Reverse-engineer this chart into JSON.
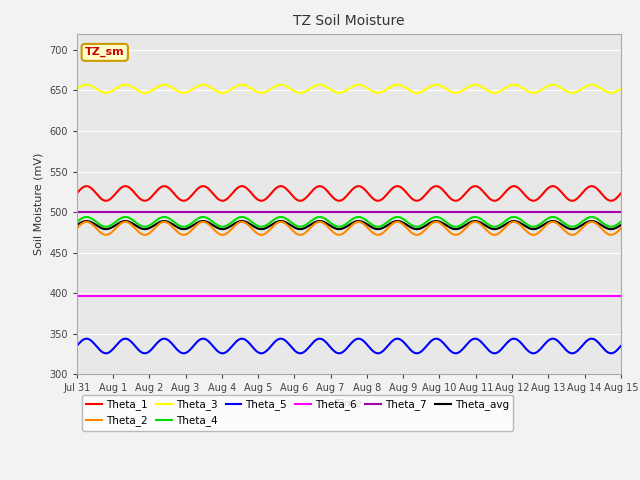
{
  "title": "TZ Soil Moisture",
  "ylabel": "Soil Moisture (mV)",
  "xlabel": "Time",
  "ylim": [
    300,
    720
  ],
  "yticks": [
    300,
    350,
    400,
    450,
    500,
    550,
    600,
    650,
    700
  ],
  "fig_bg_color": "#f2f2f2",
  "plot_bg_color": "#e8e8e8",
  "n_points": 480,
  "series": {
    "Theta_1": {
      "color": "#ff0000",
      "mean": 523,
      "amp": 9,
      "freq": 14.0,
      "noise": 0.0
    },
    "Theta_2": {
      "color": "#ff8800",
      "mean": 480,
      "amp": 8,
      "freq": 14.0,
      "noise": 0.0
    },
    "Theta_3": {
      "color": "#ffff00",
      "mean": 652,
      "amp": 5,
      "freq": 14.0,
      "noise": 0.0
    },
    "Theta_4": {
      "color": "#00dd00",
      "mean": 488,
      "amp": 6,
      "freq": 14.0,
      "noise": 0.0
    },
    "Theta_5": {
      "color": "#0000ff",
      "mean": 335,
      "amp": 9,
      "freq": 14.0,
      "noise": 0.0
    },
    "Theta_6": {
      "color": "#ff00ff",
      "mean": 397,
      "amp": 0.5,
      "freq": 0.0,
      "noise": 0.0
    },
    "Theta_7": {
      "color": "#aa00aa",
      "mean": 500,
      "amp": 0.8,
      "freq": 0.0,
      "noise": 0.0
    },
    "Theta_avg": {
      "color": "#000000",
      "mean": 484,
      "amp": 5,
      "freq": 14.0,
      "noise": 0.0
    }
  },
  "x_tick_labels": [
    "Jul 31",
    "Aug 1",
    "Aug 2",
    "Aug 3",
    "Aug 4",
    "Aug 5",
    "Aug 6",
    "Aug 7",
    "Aug 8",
    "Aug 9",
    "Aug 10",
    "Aug 11",
    "Aug 12",
    "Aug 13",
    "Aug 14",
    "Aug 15"
  ],
  "legend_label": "TZ_sm",
  "legend_bg": "#ffffcc",
  "legend_border": "#cc9900"
}
